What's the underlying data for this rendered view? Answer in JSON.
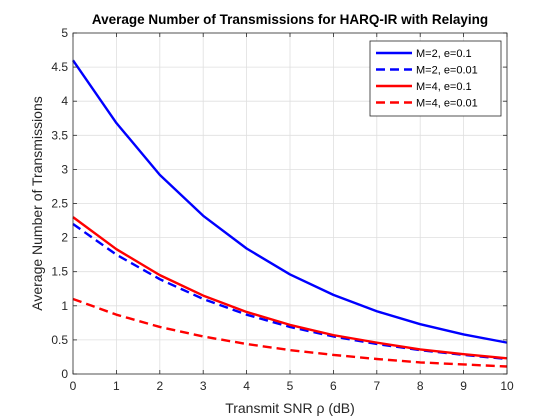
{
  "chart_data": {
    "type": "line",
    "title": "Average Number of Transmissions for HARQ-IR with Relaying",
    "xlabel": "Transmit SNR ρ (dB)",
    "ylabel": "Average Number of Transmissions",
    "xlim": [
      0,
      10
    ],
    "ylim": [
      0,
      5
    ],
    "xticks": [
      "0",
      "1",
      "2",
      "3",
      "4",
      "5",
      "6",
      "7",
      "8",
      "9",
      "10"
    ],
    "yticks": [
      "0",
      "0.5",
      "1",
      "1.5",
      "2",
      "2.5",
      "3",
      "3.5",
      "4",
      "4.5",
      "5"
    ],
    "grid": true,
    "legend_position": "top-right",
    "x": [
      0,
      1,
      2,
      3,
      4,
      5,
      6,
      7,
      8,
      9,
      10
    ],
    "series": [
      {
        "name": "M=2, e=0.1",
        "color": "#0000ff",
        "style": "solid",
        "values": [
          4.6,
          3.68,
          2.92,
          2.32,
          1.84,
          1.46,
          1.16,
          0.92,
          0.73,
          0.58,
          0.46
        ]
      },
      {
        "name": "M=2, e=0.01",
        "color": "#0000ff",
        "style": "dashed",
        "values": [
          2.2,
          1.75,
          1.39,
          1.1,
          0.87,
          0.69,
          0.55,
          0.44,
          0.35,
          0.28,
          0.22
        ]
      },
      {
        "name": "M=4, e=0.1",
        "color": "#ff0000",
        "style": "solid",
        "values": [
          2.3,
          1.83,
          1.45,
          1.15,
          0.91,
          0.72,
          0.57,
          0.46,
          0.36,
          0.29,
          0.23
        ]
      },
      {
        "name": "M=4, e=0.01",
        "color": "#ff0000",
        "style": "dashed",
        "values": [
          1.1,
          0.87,
          0.69,
          0.55,
          0.44,
          0.35,
          0.28,
          0.22,
          0.17,
          0.14,
          0.11
        ]
      }
    ]
  }
}
